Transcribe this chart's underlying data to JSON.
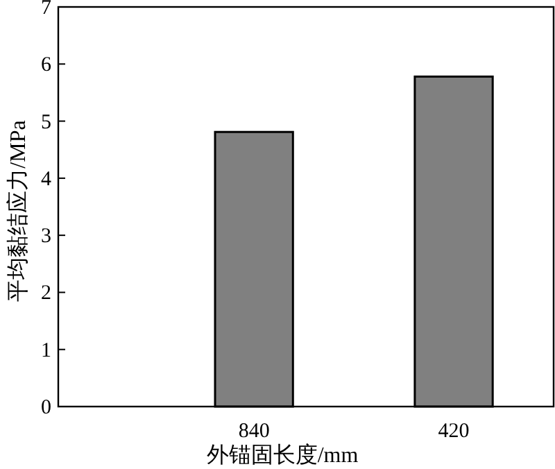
{
  "chart_data": {
    "type": "bar",
    "xlabel": "外锚固长度/mm",
    "ylabel": "平均黏结应力/MPa",
    "categories": [
      "840",
      "420"
    ],
    "values": [
      4.81,
      5.78
    ],
    "color": "#808080",
    "ylim": [
      0,
      7
    ],
    "yticks": [
      0,
      1,
      2,
      3,
      4,
      5,
      6,
      7
    ],
    "grid": false
  }
}
